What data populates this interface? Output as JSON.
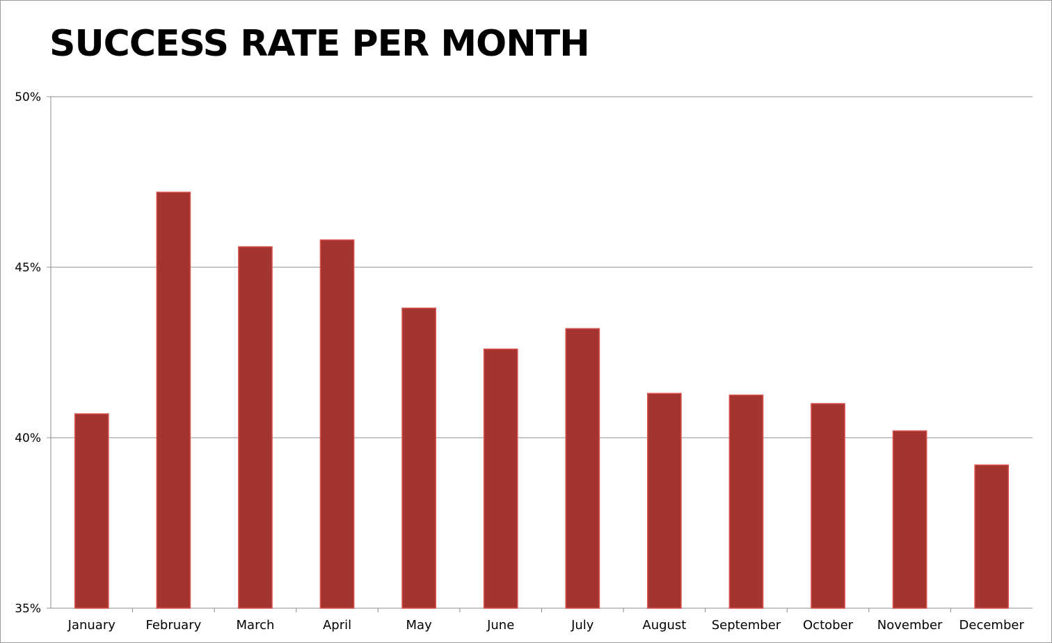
{
  "chart_data": {
    "type": "bar",
    "title": "SUCCESS RATE PER MONTH",
    "xlabel": "",
    "ylabel": "",
    "categories": [
      "January",
      "February",
      "March",
      "April",
      "May",
      "June",
      "July",
      "August",
      "September",
      "October",
      "November",
      "December"
    ],
    "values": [
      40.7,
      47.2,
      45.6,
      45.8,
      43.8,
      42.6,
      43.2,
      41.3,
      41.25,
      41.0,
      40.2,
      39.2
    ],
    "y_ticks": [
      "35%",
      "40%",
      "45%",
      "50%"
    ],
    "ylim": [
      35,
      50
    ],
    "grid": true,
    "legend": "none",
    "bar_color": "#a3342f",
    "bar_edge_color": "#d9534f"
  }
}
